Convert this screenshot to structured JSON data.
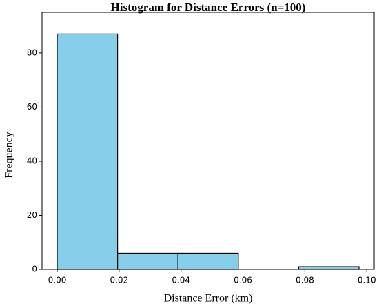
{
  "chart_data": {
    "type": "histogram",
    "title": "Histogram for Distance Errors (n=100)",
    "x_label": "Distance Error (km)",
    "y_label": "Frequency",
    "bins": [
      0,
      0.0195,
      0.039,
      0.0585,
      0.078,
      0.0975
    ],
    "values": [
      87,
      6,
      6,
      0,
      1
    ],
    "color": "#87ceeb",
    "edgecolor": "#000000",
    "xlim": [
      -0.0049,
      0.1024
    ],
    "ylim": [
      0,
      95
    ],
    "xticks": [
      {
        "value": 0,
        "label": "0.00"
      },
      {
        "value": 0.02,
        "label": "0.02"
      },
      {
        "value": 0.04,
        "label": "0.04"
      },
      {
        "value": 0.06,
        "label": "0.06"
      },
      {
        "value": 0.08,
        "label": "0.08"
      },
      {
        "value": 0.1,
        "label": "0.10"
      }
    ],
    "yticks": [
      0,
      20,
      40,
      60,
      80
    ]
  }
}
